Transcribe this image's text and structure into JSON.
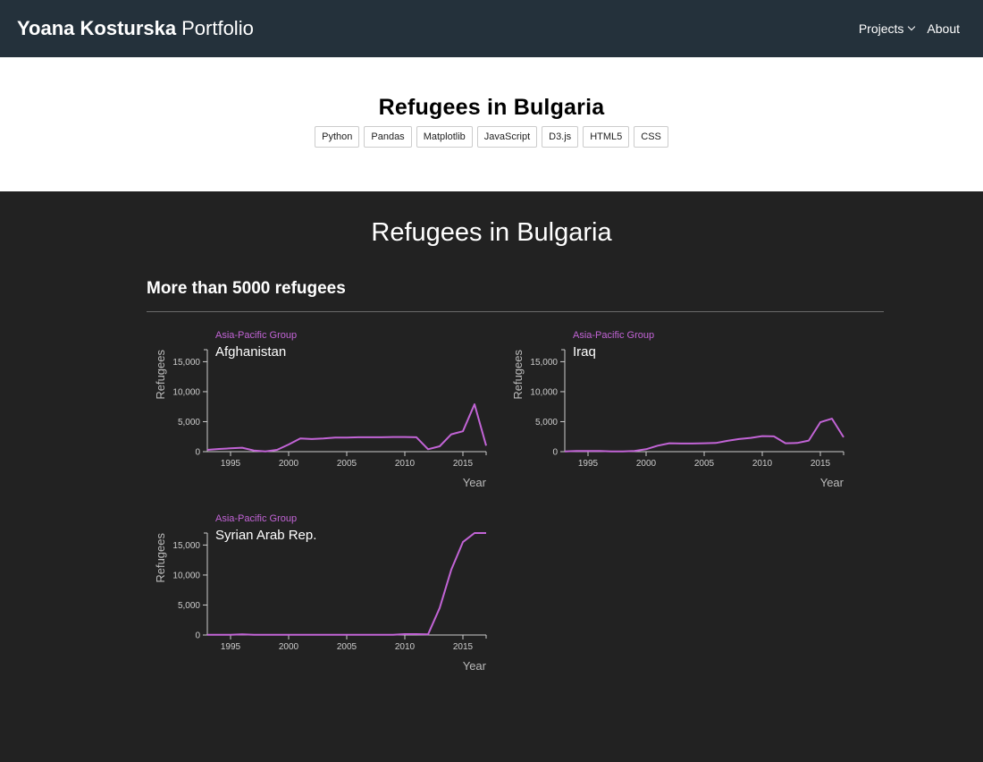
{
  "nav": {
    "brand_bold": "Yoana Kosturska",
    "brand_light": "Portfolio",
    "projects_label": "Projects",
    "about_label": "About"
  },
  "header": {
    "title": "Refugees in Bulgaria",
    "tags": [
      "Python",
      "Pandas",
      "Matplotlib",
      "JavaScript",
      "D3.js",
      "HTML5",
      "CSS"
    ]
  },
  "main": {
    "title": "Refugees in Bulgaria",
    "section_heading": "More than 5000 refugees"
  },
  "colors": {
    "line": "#c264d6",
    "group_label": "#c264d6",
    "axis": "#cccccc",
    "axis_label": "#bbbbbb"
  },
  "chart_data": [
    {
      "type": "line",
      "group": "Asia-Pacific Group",
      "title": "Afghanistan",
      "xlabel": "Year",
      "ylabel": "Refugees",
      "xlim": [
        1993,
        2017
      ],
      "ylim": [
        0,
        17000
      ],
      "xticks": [
        1995,
        2000,
        2005,
        2010,
        2015
      ],
      "yticks": [
        0,
        5000,
        10000,
        15000
      ],
      "x": [
        1993,
        1994,
        1995,
        1996,
        1997,
        1998,
        1999,
        2000,
        2001,
        2002,
        2003,
        2004,
        2005,
        2006,
        2007,
        2008,
        2009,
        2010,
        2011,
        2012,
        2013,
        2014,
        2015,
        2016,
        2017
      ],
      "y": [
        300,
        450,
        550,
        650,
        200,
        50,
        300,
        1200,
        2200,
        2100,
        2200,
        2350,
        2350,
        2400,
        2400,
        2400,
        2450,
        2450,
        2400,
        400,
        900,
        2900,
        3400,
        7900,
        1000
      ]
    },
    {
      "type": "line",
      "group": "Asia-Pacific Group",
      "title": "Iraq",
      "xlabel": "Year",
      "ylabel": "Refugees",
      "xlim": [
        1993,
        2017
      ],
      "ylim": [
        0,
        17000
      ],
      "xticks": [
        1995,
        2000,
        2005,
        2010,
        2015
      ],
      "yticks": [
        0,
        5000,
        10000,
        15000
      ],
      "x": [
        1993,
        1994,
        1995,
        1996,
        1997,
        1998,
        1999,
        2000,
        2001,
        2002,
        2003,
        2004,
        2005,
        2006,
        2007,
        2008,
        2009,
        2010,
        2011,
        2012,
        2013,
        2014,
        2015,
        2016,
        2017
      ],
      "y": [
        50,
        100,
        100,
        100,
        50,
        50,
        100,
        400,
        1000,
        1400,
        1350,
        1350,
        1400,
        1450,
        1800,
        2100,
        2300,
        2600,
        2550,
        1400,
        1450,
        1850,
        4900,
        5500,
        2400
      ]
    },
    {
      "type": "line",
      "group": "Asia-Pacific Group",
      "title": "Syrian Arab Rep.",
      "xlabel": "Year",
      "ylabel": "Refugees",
      "xlim": [
        1993,
        2017
      ],
      "ylim": [
        0,
        17000
      ],
      "xticks": [
        1995,
        2000,
        2005,
        2010,
        2015
      ],
      "yticks": [
        0,
        5000,
        10000,
        15000
      ],
      "x": [
        1993,
        1994,
        1995,
        1996,
        1997,
        1998,
        1999,
        2000,
        2001,
        2002,
        2003,
        2004,
        2005,
        2006,
        2007,
        2008,
        2009,
        2010,
        2011,
        2012,
        2013,
        2014,
        2015,
        2016,
        2017
      ],
      "y": [
        50,
        50,
        50,
        100,
        50,
        50,
        50,
        50,
        50,
        50,
        50,
        50,
        50,
        50,
        50,
        50,
        50,
        150,
        150,
        100,
        4500,
        10900,
        15500,
        17000,
        17000
      ]
    }
  ]
}
